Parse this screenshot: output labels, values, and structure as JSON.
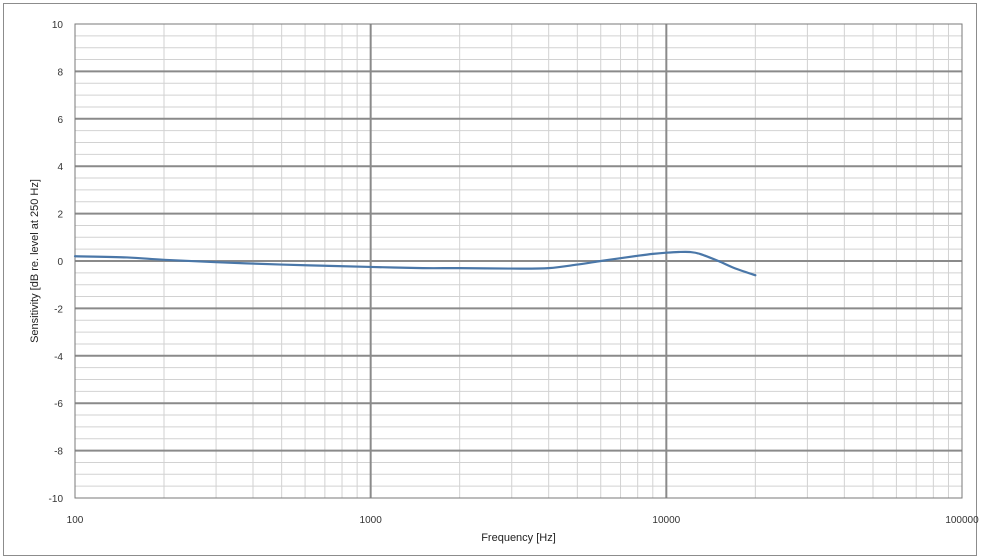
{
  "chart_data": {
    "type": "line",
    "xlabel": "Frequency [Hz]",
    "ylabel": "Sensitivity [dB re. level at 250 Hz]",
    "xscale": "log",
    "xlim": [
      100,
      100000
    ],
    "ylim": [
      -10,
      10
    ],
    "grid": true,
    "legend": "none",
    "x_ticks": [
      "100",
      "1000",
      "10000",
      "100000"
    ],
    "y_ticks": [
      "10",
      "8",
      "6",
      "4",
      "2",
      "0",
      "-2",
      "-4",
      "-6",
      "-8",
      "-10"
    ],
    "series": [
      {
        "color": "#4a77a8",
        "x": [
          100,
          150,
          200,
          300,
          500,
          700,
          1000,
          1500,
          2000,
          3000,
          4000,
          5000,
          6000,
          7000,
          8000,
          9000,
          10000,
          11000,
          12000,
          13000,
          15000,
          17000,
          20000
        ],
        "y": [
          0.2,
          0.15,
          0.05,
          -0.05,
          -0.15,
          -0.2,
          -0.25,
          -0.3,
          -0.3,
          -0.32,
          -0.3,
          -0.15,
          0.0,
          0.12,
          0.22,
          0.3,
          0.35,
          0.38,
          0.38,
          0.3,
          0.0,
          -0.3,
          -0.6
        ]
      }
    ]
  }
}
